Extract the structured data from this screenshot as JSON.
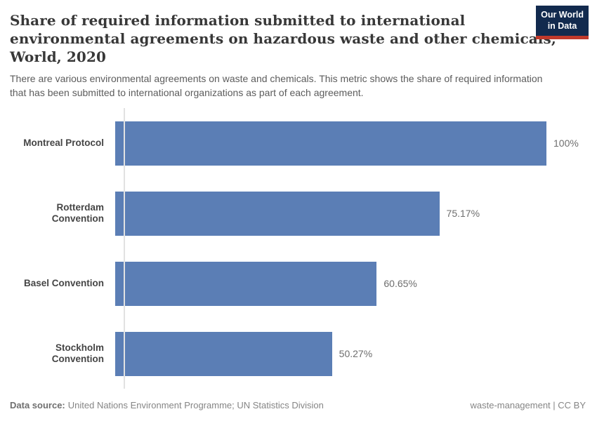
{
  "header": {
    "title_lines": [
      "Share of required information submitted to international",
      "environmental agreements on hazardous waste and other chemicals,",
      "World, 2020"
    ],
    "subtitle_lines": [
      "There are various environmental agreements on waste and chemicals. This metric shows the share of required information",
      "that has been submitted to international organizations as part of each agreement."
    ],
    "logo": {
      "line1": "Our World",
      "line2": "in Data",
      "bg_color": "#122a4e",
      "accent_color": "#c0392b"
    }
  },
  "chart_data": {
    "type": "bar",
    "orientation": "horizontal",
    "title": "Share of required information submitted to international environmental agreements on hazardous waste and other chemicals, World, 2020",
    "subtitle": "There are various environmental agreements on waste and chemicals. This metric shows the share of required information that has been submitted to international organizations as part of each agreement.",
    "categories": [
      "Montreal Protocol",
      "Rotterdam Convention",
      "Basel Convention",
      "Stockholm Convention"
    ],
    "values": [
      100,
      75.17,
      60.65,
      50.27
    ],
    "value_labels": [
      "100%",
      "75.17%",
      "60.65%",
      "50.27%"
    ],
    "xlabel": "",
    "ylabel": "",
    "xlim": [
      0,
      100
    ],
    "grid": false,
    "legend": false,
    "bar_color": "#5b7eb5",
    "axis_color": "#e2e2e2"
  },
  "footer": {
    "data_source_label": "Data source:",
    "data_source_value": "United Nations Environment Programme; UN Statistics Division",
    "right_text": "waste-management | CC BY"
  }
}
